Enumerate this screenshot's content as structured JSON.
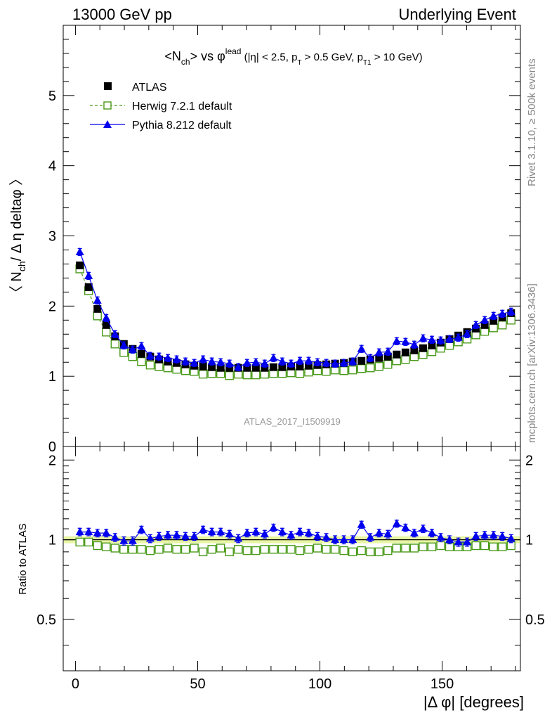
{
  "header": {
    "left": "13000 GeV pp",
    "right": "Underlying Event"
  },
  "side": {
    "rivet": "Rivet 3.1.10, ≥ 500k events",
    "mcplots": "mcplots.cern.ch [arXiv:1306.3436]"
  },
  "watermark": "ATLAS_2017_I1509919",
  "main": {
    "title": {
      "a": "<N",
      "sub1": "ch",
      "b": "> vs φ",
      "sup1": "lead",
      "c": " (|η| < 2.5, p",
      "sub2": "T",
      "d": " > 0.5 GeV, p",
      "sub3": "T1",
      "e": " > 10 GeV)"
    },
    "ylabel": {
      "a": "〈 N",
      "sub": "ch",
      "b": "/ Δ η deltaφ 〉"
    }
  },
  "ratio": {
    "ylabel": "Ratio to ATLAS"
  },
  "xlabel": "|Δ φ| [degrees]",
  "legend": [
    {
      "label": "ATLAS",
      "color": "#000000",
      "marker": "filled-square"
    },
    {
      "label": "Herwig 7.2.1 default",
      "color": "#4a9a1a",
      "marker": "open-square",
      "dash": true
    },
    {
      "label": "Pythia 8.212 default",
      "color": "#0000ee",
      "marker": "filled-triangle"
    }
  ],
  "colors": {
    "atlas": "#000000",
    "herwig": "#4a9a1a",
    "pythia": "#0000ee",
    "band": "#e8f5a3"
  },
  "chart_data": {
    "type": "scatter",
    "x": [
      1.8,
      5.4,
      9,
      12.6,
      16.2,
      19.8,
      23.4,
      27,
      30.6,
      34.2,
      37.8,
      41.4,
      45,
      48.6,
      52.2,
      55.8,
      59.4,
      63,
      66.6,
      70.2,
      73.8,
      77.4,
      81,
      84.6,
      88.2,
      91.8,
      95.4,
      99,
      102.6,
      106.2,
      109.8,
      113.4,
      117,
      120.6,
      124.2,
      127.8,
      131.4,
      135,
      138.6,
      142.2,
      145.8,
      149.4,
      153,
      156.6,
      160.2,
      163.8,
      167.4,
      171,
      174.6,
      178.2
    ],
    "xlim": [
      -5,
      182
    ],
    "xticks": [
      0,
      50,
      100,
      150
    ],
    "main": {
      "ylim": [
        0,
        6
      ],
      "yticks": [
        0,
        1,
        2,
        3,
        4,
        5
      ],
      "series": [
        {
          "name": "ATLAS",
          "values": [
            2.58,
            2.27,
            1.96,
            1.73,
            1.57,
            1.46,
            1.39,
            1.32,
            1.28,
            1.24,
            1.21,
            1.19,
            1.17,
            1.15,
            1.14,
            1.13,
            1.12,
            1.12,
            1.12,
            1.12,
            1.12,
            1.12,
            1.13,
            1.13,
            1.14,
            1.14,
            1.15,
            1.16,
            1.17,
            1.18,
            1.19,
            1.21,
            1.22,
            1.24,
            1.26,
            1.28,
            1.31,
            1.34,
            1.37,
            1.4,
            1.44,
            1.48,
            1.53,
            1.58,
            1.63,
            1.68,
            1.73,
            1.79,
            1.84,
            1.9
          ]
        },
        {
          "name": "Herwig 7.2.1 default",
          "values": [
            2.53,
            2.22,
            1.86,
            1.63,
            1.46,
            1.34,
            1.28,
            1.21,
            1.16,
            1.14,
            1.12,
            1.1,
            1.08,
            1.07,
            1.03,
            1.04,
            1.04,
            1.01,
            1.03,
            1.02,
            1.02,
            1.03,
            1.04,
            1.04,
            1.05,
            1.04,
            1.06,
            1.08,
            1.07,
            1.09,
            1.08,
            1.09,
            1.11,
            1.12,
            1.14,
            1.17,
            1.22,
            1.24,
            1.28,
            1.31,
            1.35,
            1.4,
            1.44,
            1.49,
            1.53,
            1.59,
            1.64,
            1.69,
            1.73,
            1.8
          ]
        },
        {
          "name": "Pythia 8.212 default",
          "values": [
            2.77,
            2.43,
            2.08,
            1.83,
            1.6,
            1.44,
            1.38,
            1.43,
            1.29,
            1.28,
            1.26,
            1.24,
            1.21,
            1.19,
            1.24,
            1.21,
            1.2,
            1.18,
            1.13,
            1.19,
            1.2,
            1.18,
            1.26,
            1.21,
            1.18,
            1.22,
            1.22,
            1.2,
            1.19,
            1.18,
            1.19,
            1.21,
            1.39,
            1.26,
            1.34,
            1.35,
            1.5,
            1.49,
            1.45,
            1.54,
            1.52,
            1.51,
            1.53,
            1.55,
            1.6,
            1.73,
            1.8,
            1.86,
            1.89,
            1.92
          ]
        }
      ]
    },
    "ratio": {
      "ylim": [
        0.32,
        2.25
      ],
      "yticks": [
        0.5,
        1,
        2
      ],
      "series": [
        {
          "name": "Herwig 7.2.1 default",
          "values": [
            0.98,
            0.98,
            0.95,
            0.94,
            0.93,
            0.92,
            0.92,
            0.92,
            0.91,
            0.92,
            0.93,
            0.92,
            0.92,
            0.93,
            0.9,
            0.92,
            0.93,
            0.9,
            0.92,
            0.91,
            0.91,
            0.92,
            0.92,
            0.92,
            0.92,
            0.91,
            0.92,
            0.93,
            0.92,
            0.92,
            0.91,
            0.9,
            0.91,
            0.9,
            0.9,
            0.91,
            0.93,
            0.93,
            0.93,
            0.94,
            0.94,
            0.95,
            0.94,
            0.94,
            0.94,
            0.95,
            0.95,
            0.94,
            0.94,
            0.95
          ]
        },
        {
          "name": "Pythia 8.212 default",
          "values": [
            1.07,
            1.07,
            1.06,
            1.06,
            1.02,
            0.99,
            0.99,
            1.09,
            1.01,
            1.03,
            1.04,
            1.04,
            1.03,
            1.03,
            1.09,
            1.07,
            1.07,
            1.05,
            1.01,
            1.06,
            1.07,
            1.05,
            1.11,
            1.07,
            1.04,
            1.07,
            1.06,
            1.03,
            1.02,
            1.0,
            1.0,
            1.0,
            1.14,
            1.02,
            1.06,
            1.05,
            1.15,
            1.11,
            1.06,
            1.1,
            1.06,
            1.02,
            1.0,
            0.98,
            0.98,
            1.03,
            1.04,
            1.04,
            1.03,
            1.01
          ]
        }
      ]
    }
  }
}
